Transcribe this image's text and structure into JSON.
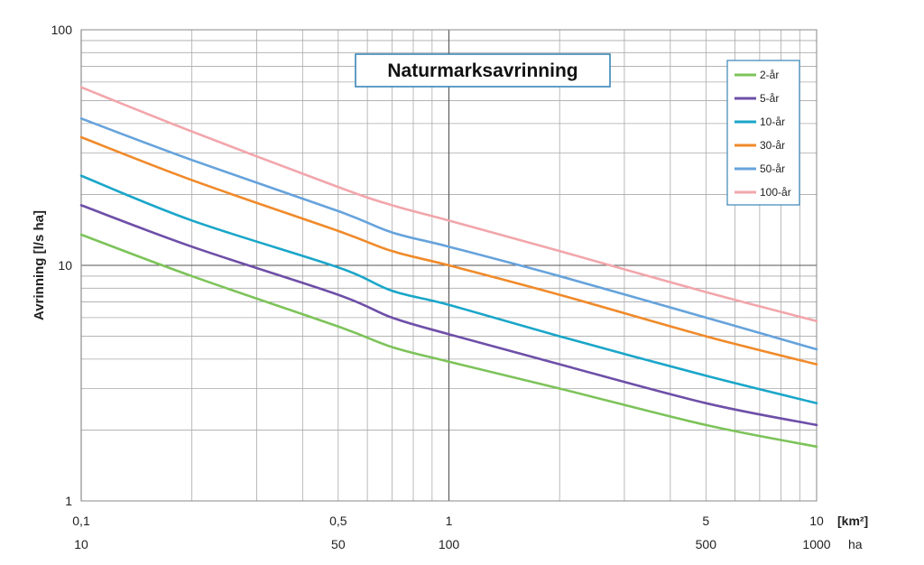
{
  "chart_data": {
    "type": "line",
    "title": "Naturmarksavrinning",
    "ylabel": "Avrinning [l/s ha]",
    "x_scale": "log",
    "y_scale": "log",
    "xlim": [
      0.1,
      10
    ],
    "ylim": [
      1,
      100
    ],
    "grid": true,
    "legend_position": "top-right",
    "x_unit": "[km²]",
    "x_secondary_unit": "ha",
    "x_ticks": [
      {
        "value": 0.1,
        "label": "0,1",
        "secondary": "10"
      },
      {
        "value": 0.5,
        "label": "0,5",
        "secondary": "50"
      },
      {
        "value": 1,
        "label": "1",
        "secondary": "100"
      },
      {
        "value": 5,
        "label": "5",
        "secondary": "500"
      },
      {
        "value": 10,
        "label": "10",
        "secondary": "1000"
      }
    ],
    "y_ticks": [
      {
        "value": 1,
        "label": "1"
      },
      {
        "value": 10,
        "label": "10"
      },
      {
        "value": 100,
        "label": "100"
      }
    ],
    "x": [
      0.1,
      0.2,
      0.5,
      0.7,
      1,
      2,
      5,
      10
    ],
    "series": [
      {
        "name": "2-år",
        "color": "#7dc35a",
        "values": [
          13.5,
          9,
          5.5,
          4.5,
          3.9,
          3,
          2.1,
          1.7
        ]
      },
      {
        "name": "5-år",
        "color": "#6e4fa8",
        "values": [
          18,
          12,
          7.5,
          6,
          5.1,
          3.8,
          2.6,
          2.1
        ]
      },
      {
        "name": "10-år",
        "color": "#1aa6c9",
        "values": [
          24,
          15.5,
          9.8,
          7.8,
          6.8,
          5,
          3.4,
          2.6
        ]
      },
      {
        "name": "30-år",
        "color": "#f08a2a",
        "values": [
          35,
          23,
          14,
          11.5,
          10,
          7.5,
          5,
          3.8
        ]
      },
      {
        "name": "50-år",
        "color": "#66a3dc",
        "values": [
          42,
          28,
          17,
          13.8,
          12,
          9,
          6,
          4.4
        ]
      },
      {
        "name": "100-år",
        "color": "#f2a6ab",
        "values": [
          57,
          37,
          21.5,
          18,
          15.5,
          11.5,
          7.7,
          5.8
        ]
      }
    ]
  }
}
